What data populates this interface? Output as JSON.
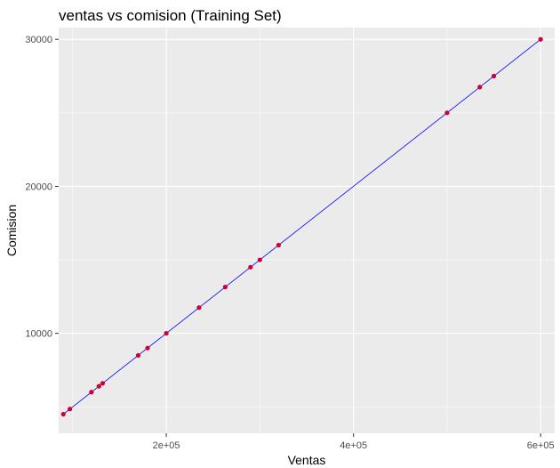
{
  "chart_data": {
    "type": "scatter",
    "title": "ventas vs comision (Training Set)",
    "xlabel": "Ventas",
    "ylabel": "Comision",
    "xlim": [
      85000,
      615000
    ],
    "ylim": [
      3200,
      30800
    ],
    "x_ticks": [
      200000,
      400000,
      600000
    ],
    "x_tick_labels": [
      "2e+05",
      "4e+05",
      "6e+05"
    ],
    "x_minor": [
      100000,
      300000,
      500000
    ],
    "y_ticks": [
      10000,
      20000,
      30000
    ],
    "y_tick_labels": [
      "10000",
      "20000",
      "30000"
    ],
    "y_minor": [
      5000,
      15000,
      25000
    ],
    "grid": true,
    "legend": "none",
    "point_color": "#cc0033",
    "line_color": "#0000ff",
    "panel_color": "#ebebeb",
    "series": [
      {
        "kind": "points",
        "x": [
          90000,
          97000,
          120000,
          128000,
          132000,
          170000,
          180000,
          200000,
          235000,
          263000,
          290000,
          300000,
          320000,
          500000,
          535000,
          550000,
          600000
        ],
        "y": [
          4500,
          4850,
          6000,
          6400,
          6600,
          8500,
          9000,
          10000,
          11750,
          13150,
          14500,
          15000,
          16000,
          25000,
          26750,
          27500,
          30000
        ]
      },
      {
        "kind": "line",
        "x": [
          90000,
          600000
        ],
        "y": [
          4500,
          30000
        ]
      }
    ]
  }
}
